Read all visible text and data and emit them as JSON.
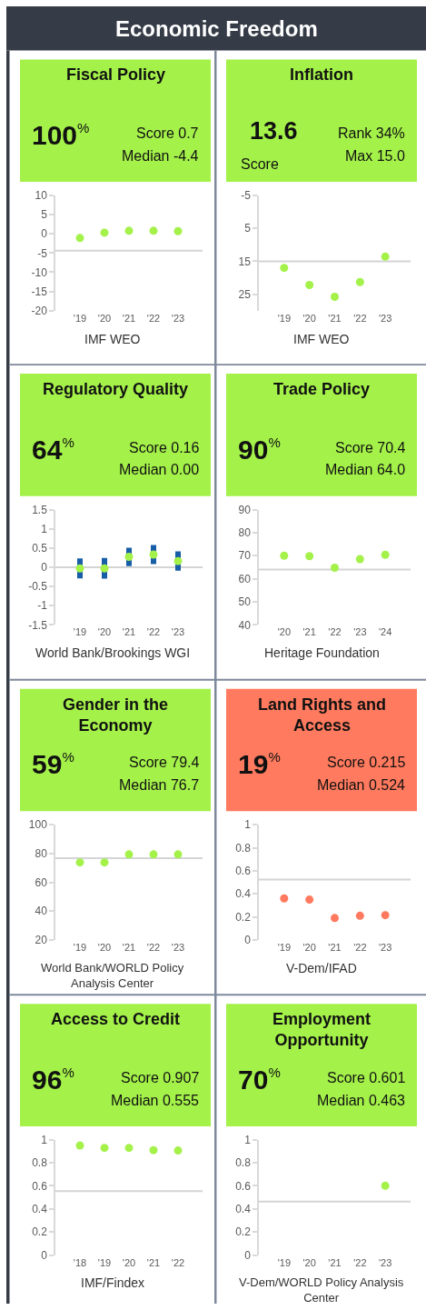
{
  "chart_data": [
    {
      "type": "other",
      "title": "Economic Freedom"
    },
    {
      "type": "scatter",
      "title": "Fiscal Policy",
      "annotations": [
        "100$^{%}$",
        "Score 0.7",
        "Median -4.4"
      ],
      "xlabel": "IMF WEO",
      "categories": [
        "'19",
        "'20",
        "'21",
        "'22",
        "'23"
      ],
      "values": [
        -1.1,
        0.3,
        0.8,
        0.8,
        0.7
      ],
      "color": "#a4f14a",
      "marker": "circle",
      "ylim": [
        -20,
        10
      ],
      "yticks": [
        -20,
        -15,
        -10,
        -5,
        0,
        5,
        10
      ],
      "ref_lines": [
        {
          "axis": "y",
          "value": -4.4,
          "color": "#d4d4d4"
        }
      ]
    },
    {
      "type": "scatter",
      "title": "Inflation",
      "annotations": [
        "13.6",
        "Score",
        "Rank 34%",
        "Max 15.0"
      ],
      "xlabel": "IMF WEO",
      "categories": [
        "'19",
        "'20",
        "'21",
        "'22",
        "'23"
      ],
      "values": [
        17.0,
        22.2,
        25.8,
        21.3,
        13.6
      ],
      "color": "#a4f14a",
      "marker": "circle",
      "ylim": [
        30,
        -5
      ],
      "yticks": [
        -5,
        5,
        15,
        25
      ],
      "ref_lines": [
        {
          "axis": "y",
          "value": 15.0,
          "color": "#d4d4d4"
        }
      ]
    },
    {
      "type": "scatter",
      "title": "Regulatory Quality",
      "annotations": [
        "64$^{%}$",
        "Score 0.16",
        "Median 0.00"
      ],
      "xlabel": "World Bank/Brookings WGI",
      "categories": [
        "'19",
        "'20",
        "'21",
        "'22",
        "'23"
      ],
      "values": [
        -0.03,
        -0.03,
        0.27,
        0.33,
        0.16
      ],
      "errors": [
        0.26,
        0.27,
        0.24,
        0.25,
        0.25
      ],
      "color": "#a4f14a",
      "marker": "circle",
      "ylim": [
        -1.5,
        1.5
      ],
      "yticks": [
        -1.5,
        -1,
        -0.5,
        0,
        0.5,
        1,
        1.5
      ],
      "ref_lines": [
        {
          "axis": "y",
          "value": 0,
          "color": "#d4d4d4"
        }
      ]
    },
    {
      "type": "scatter",
      "title": "Trade Policy",
      "annotations": [
        "90$^{%}$",
        "Score 70.4",
        "Median 64.0"
      ],
      "xlabel": "Heritage Foundation",
      "categories": [
        "'20",
        "'21",
        "'22",
        "'23",
        "'24"
      ],
      "values": [
        70.0,
        69.8,
        64.8,
        68.5,
        70.4
      ],
      "color": "#a4f14a",
      "marker": "circle",
      "ylim": [
        40,
        90
      ],
      "yticks": [
        40,
        50,
        60,
        70,
        80,
        90
      ],
      "ref_lines": [
        {
          "axis": "y",
          "value": 64.0,
          "color": "#d4d4d4"
        }
      ]
    },
    {
      "type": "scatter",
      "title": "Gender in the Economy",
      "annotations": [
        "59$^{%}$",
        "Score 79.4",
        "Median 76.7"
      ],
      "xlabel": "World Bank/WORLD Policy Analysis Center",
      "categories": [
        "'19",
        "'20",
        "'21",
        "'22",
        "'23"
      ],
      "values": [
        73.8,
        73.8,
        79.4,
        79.4,
        79.4
      ],
      "color": "#a4f14a",
      "marker": "circle",
      "ylim": [
        20,
        100
      ],
      "yticks": [
        20,
        40,
        60,
        80,
        100
      ],
      "ref_lines": [
        {
          "axis": "y",
          "value": 76.7,
          "color": "#d4d4d4"
        }
      ]
    },
    {
      "type": "scatter",
      "title": "Land Rights and Access",
      "annotations": [
        "19$^{%}$",
        "Score 0.215",
        "Median 0.524"
      ],
      "xlabel": "V-Dem/IFAD",
      "categories": [
        "'19",
        "'20",
        "'21",
        "'22",
        "'23"
      ],
      "values": [
        0.36,
        0.35,
        0.19,
        0.21,
        0.215
      ],
      "color": "#ff7a5e",
      "marker": "circle",
      "ylim": [
        0,
        1
      ],
      "yticks": [
        0,
        0.2,
        0.4,
        0.6,
        0.8,
        1
      ],
      "ref_lines": [
        {
          "axis": "y",
          "value": 0.524,
          "color": "#d4d4d4"
        }
      ]
    },
    {
      "type": "scatter",
      "title": "Access to Credit",
      "annotations": [
        "96$^{%}$",
        "Score 0.907",
        "Median 0.555"
      ],
      "xlabel": "IMF/Findex",
      "categories": [
        "'18",
        "'19",
        "'20",
        "'21",
        "'22"
      ],
      "values": [
        0.95,
        0.93,
        0.93,
        0.91,
        0.907
      ],
      "color": "#a4f14a",
      "marker": "circle",
      "ylim": [
        0,
        1
      ],
      "yticks": [
        0,
        0.2,
        0.4,
        0.6,
        0.8,
        1
      ],
      "ref_lines": [
        {
          "axis": "y",
          "value": 0.555,
          "color": "#d4d4d4"
        }
      ]
    },
    {
      "type": "scatter",
      "title": "Employment Opportunity",
      "annotations": [
        "70$^{%}$",
        "Score 0.601",
        "Median 0.463"
      ],
      "xlabel": "V-Dem/WORLD Policy Analysis Center",
      "categories": [
        "'19",
        "'20",
        "'21",
        "'22",
        "'23"
      ],
      "values": [
        null,
        null,
        null,
        null,
        0.601
      ],
      "color": "#a4f14a",
      "marker": "circle",
      "ylim": [
        0,
        1
      ],
      "yticks": [
        0,
        0.2,
        0.4,
        0.6,
        0.8,
        1
      ],
      "ref_lines": [
        {
          "axis": "y",
          "value": 0.463,
          "color": "#d4d4d4"
        }
      ]
    }
  ]
}
